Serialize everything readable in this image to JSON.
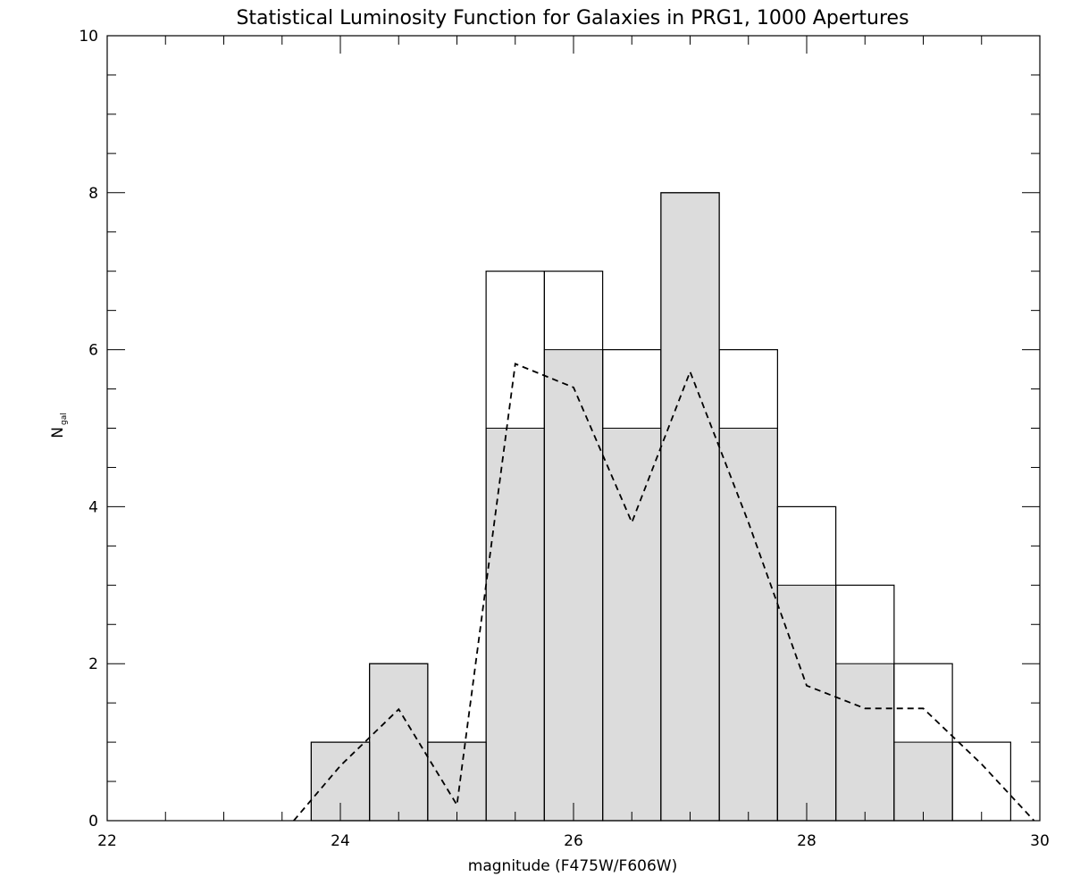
{
  "chart_data": {
    "type": "bar",
    "title": "Statistical Luminosity Function for Galaxies in PRG1, 1000 Apertures",
    "xlabel": "magnitude (F475W/F606W)",
    "ylabel_main": "N",
    "ylabel_sub": "gal",
    "xlim": [
      22,
      30
    ],
    "ylim": [
      0,
      10
    ],
    "x_ticks": [
      22,
      24,
      26,
      28,
      30
    ],
    "y_ticks": [
      0,
      2,
      4,
      6,
      8,
      10
    ],
    "x_tick_labels": [
      "22",
      "24",
      "26",
      "28",
      "30"
    ],
    "y_tick_labels": [
      "0",
      "2",
      "4",
      "6",
      "8",
      "10"
    ],
    "grid": false,
    "bin_edges": [
      23.75,
      24.25,
      24.75,
      25.25,
      25.75,
      26.25,
      26.75,
      27.25,
      27.75,
      28.25,
      28.75,
      29.25,
      29.75
    ],
    "series": [
      {
        "style": "filled-histogram",
        "color": "#dcdcdc",
        "values": [
          1,
          2,
          1,
          5,
          6,
          5,
          8,
          5,
          3,
          2,
          1,
          0
        ]
      },
      {
        "style": "outline-histogram",
        "color": "#000000",
        "values": [
          1,
          2,
          1,
          7,
          7,
          6,
          8,
          6,
          4,
          3,
          2,
          1
        ]
      },
      {
        "style": "dashed-line",
        "color": "#000000",
        "x": [
          23.6,
          24.0,
          24.5,
          25.0,
          25.5,
          26.0,
          26.5,
          27.0,
          27.5,
          28.0,
          28.5,
          29.0,
          29.5,
          29.95
        ],
        "y": [
          0.0,
          0.7,
          1.42,
          0.2,
          5.82,
          5.52,
          3.8,
          5.72,
          3.8,
          1.72,
          1.43,
          1.43,
          0.72,
          0.0
        ]
      }
    ]
  }
}
